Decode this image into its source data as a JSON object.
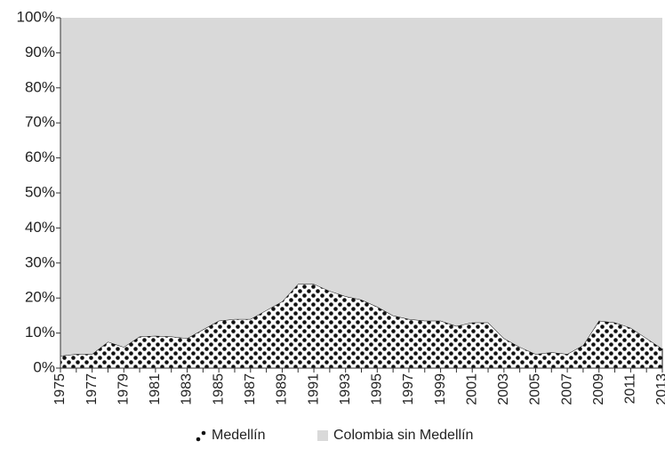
{
  "chart_data": {
    "type": "area",
    "categories": [
      "1975",
      null,
      "1977",
      null,
      "1979",
      null,
      "1981",
      null,
      "1983",
      null,
      "1985",
      null,
      "1987",
      null,
      "1989",
      null,
      "1991",
      null,
      "1993",
      null,
      "1995",
      null,
      "1997",
      null,
      "1999",
      null,
      "2001",
      null,
      "2003",
      null,
      "2005",
      null,
      "2007",
      null,
      "2009",
      null,
      "2011",
      null,
      "2013"
    ],
    "stacked": true,
    "series": [
      {
        "name": "Medellín",
        "color": "#ffffff",
        "values": [
          3.5,
          4,
          4,
          7.5,
          6,
          9,
          9.2,
          9,
          8.5,
          11,
          13.5,
          14,
          14,
          16.5,
          19,
          24,
          24,
          22,
          20.5,
          19.5,
          17.5,
          15,
          14,
          13.5,
          13.5,
          12,
          13,
          13,
          8.5,
          6,
          4,
          4.5,
          4,
          6.5,
          13.5,
          13,
          11.5,
          8.5,
          5.5
        ]
      },
      {
        "name": "Colombia sin Medellín",
        "color": "#d9d9d9",
        "values": [
          96.5,
          96,
          96,
          92.5,
          94,
          91,
          90.8,
          91,
          91.5,
          89,
          86.5,
          86,
          86,
          83.5,
          81,
          76,
          76,
          78,
          79.5,
          80.5,
          82.5,
          85,
          86,
          86.5,
          86.5,
          88,
          87,
          87,
          91.5,
          94,
          96,
          95.5,
          96,
          93.5,
          86.5,
          87,
          88.5,
          91.5,
          94.5
        ]
      }
    ],
    "ylim": [
      0,
      100
    ],
    "yticks": [
      {
        "value": 0,
        "label": "0%"
      },
      {
        "value": 10,
        "label": "10%"
      },
      {
        "value": 20,
        "label": "20%"
      },
      {
        "value": 30,
        "label": "30%"
      },
      {
        "value": 40,
        "label": "40%"
      },
      {
        "value": 50,
        "label": "50%"
      },
      {
        "value": 60,
        "label": "60%"
      },
      {
        "value": 70,
        "label": "70%"
      },
      {
        "value": 80,
        "label": "80%"
      },
      {
        "value": 90,
        "label": "90%"
      },
      {
        "value": 100,
        "label": "100%"
      }
    ],
    "legend": "bottom"
  }
}
